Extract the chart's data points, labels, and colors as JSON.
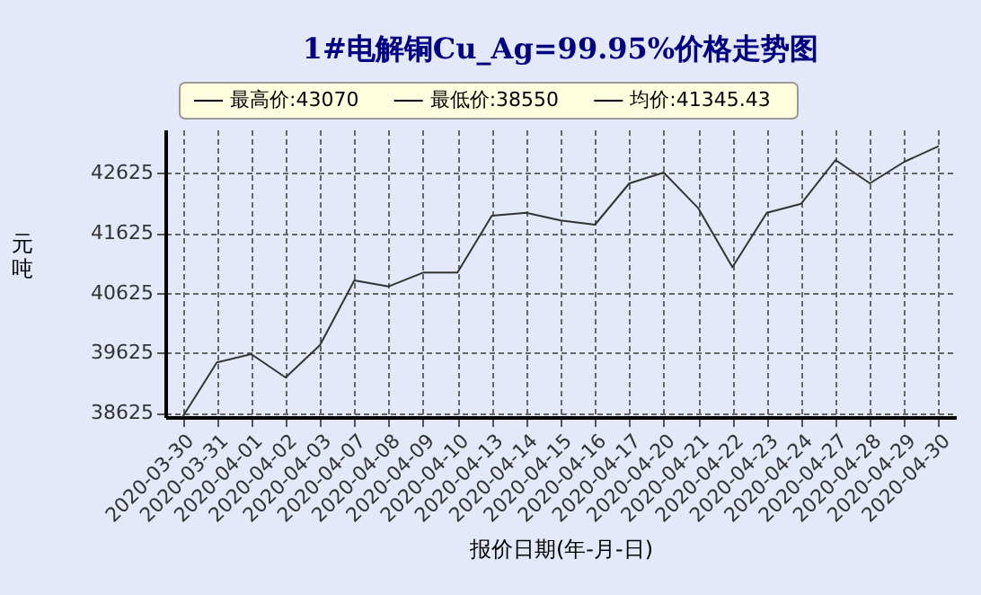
{
  "chart_data": {
    "type": "line",
    "title": "1#电解铜Cu_Ag=99.95%价格走势图",
    "xlabel": "报价日期(年-月-日)",
    "ylabel": "元吨",
    "categories": [
      "2020-03-30",
      "2020-03-31",
      "2020-04-01",
      "2020-04-02",
      "2020-04-03",
      "2020-04-07",
      "2020-04-08",
      "2020-04-09",
      "2020-04-10",
      "2020-04-13",
      "2020-04-14",
      "2020-04-15",
      "2020-04-16",
      "2020-04-17",
      "2020-04-20",
      "2020-04-21",
      "2020-04-22",
      "2020-04-23",
      "2020-04-24",
      "2020-04-27",
      "2020-04-28",
      "2020-04-29",
      "2020-04-30"
    ],
    "series": [
      {
        "color": "#333333",
        "values": [
          38550,
          39460,
          39600,
          39210,
          39750,
          40830,
          40730,
          40960,
          40960,
          41910,
          41960,
          41830,
          41760,
          42450,
          42630,
          42040,
          41050,
          41960,
          42110,
          42840,
          42450,
          42810,
          43070
        ]
      }
    ],
    "ylim": [
      38550,
      43350
    ],
    "yticks": [
      38625,
      39625,
      40625,
      41625,
      42625
    ],
    "grid": true,
    "marker": "none",
    "annotations": [
      "最高价:43070",
      "最低价:38550",
      "均价:41345.43"
    ]
  }
}
